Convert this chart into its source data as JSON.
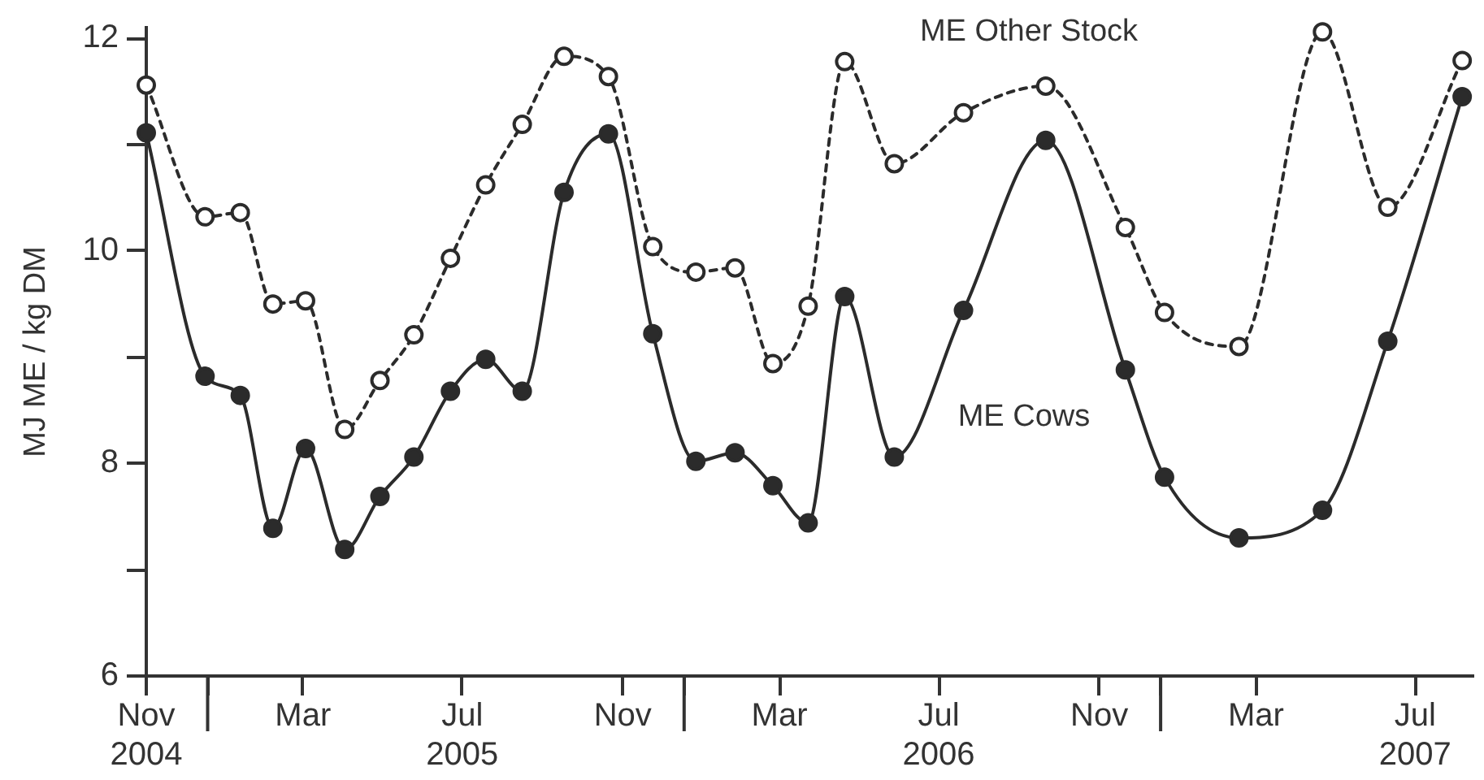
{
  "chart_data": {
    "type": "line",
    "ylabel": "MJ ME / kg DM",
    "x": [
      "2004-11-15",
      "2004-12-30",
      "2005-01-26",
      "2005-02-20",
      "2005-03-17",
      "2005-04-16",
      "2005-05-13",
      "2005-06-08",
      "2005-07-06",
      "2005-08-02",
      "2005-08-30",
      "2005-10-01",
      "2005-11-04",
      "2005-12-08",
      "2006-01-10",
      "2006-02-09",
      "2006-03-10",
      "2006-04-06",
      "2006-05-04",
      "2006-06-11",
      "2006-08-03",
      "2006-10-05",
      "2006-12-05",
      "2007-01-04",
      "2007-03-02",
      "2007-05-05",
      "2007-06-24",
      "2007-08-20"
    ],
    "series": [
      {
        "name": "ME Cows",
        "color": "#2b2b2b",
        "line_style": "solid",
        "values": [
          11.11,
          8.82,
          8.64,
          7.39,
          8.14,
          7.19,
          7.69,
          8.06,
          8.68,
          8.98,
          8.68,
          10.55,
          11.1,
          9.22,
          8.02,
          8.1,
          7.79,
          7.44,
          9.57,
          8.06,
          9.44,
          11.04,
          8.88,
          7.87,
          7.3,
          7.56,
          9.15,
          11.45
        ]
      },
      {
        "name": "ME Other Stock",
        "color": "#2b2b2b",
        "line_style": "dashed",
        "values": [
          11.56,
          10.32,
          10.36,
          9.5,
          9.53,
          8.32,
          8.78,
          9.21,
          9.93,
          10.62,
          11.19,
          11.83,
          11.64,
          10.04,
          9.8,
          9.84,
          8.94,
          9.48,
          11.78,
          10.82,
          11.3,
          11.55,
          10.22,
          9.42,
          9.1,
          12.06,
          10.41,
          11.79
        ]
      }
    ],
    "xlim": [
      "2004-11-15",
      "2007-08-28"
    ],
    "xticks": [
      {
        "value": "2004-11-15",
        "label": "Nov\n2004"
      },
      {
        "value": "2005-01-01",
        "label": null
      },
      {
        "value": "2005-03-15",
        "label": "Mar"
      },
      {
        "value": "2005-07-15",
        "label": "Jul\n2005"
      },
      {
        "value": "2005-11-15",
        "label": "Nov"
      },
      {
        "value": "2006-01-01",
        "label": null
      },
      {
        "value": "2006-03-15",
        "label": "Mar"
      },
      {
        "value": "2006-07-15",
        "label": "Jul\n2006"
      },
      {
        "value": "2006-11-15",
        "label": "Nov"
      },
      {
        "value": "2007-01-01",
        "label": null
      },
      {
        "value": "2007-03-15",
        "label": "Mar"
      },
      {
        "value": "2007-07-15",
        "label": "Jul\n2007"
      }
    ],
    "ylim": [
      6,
      12.1
    ],
    "yticks": [
      6,
      {
        "value": 7,
        "label": null
      },
      8,
      {
        "value": 9,
        "label": null
      },
      10,
      {
        "value": 11,
        "label": null
      },
      12
    ],
    "marker": "circle"
  }
}
